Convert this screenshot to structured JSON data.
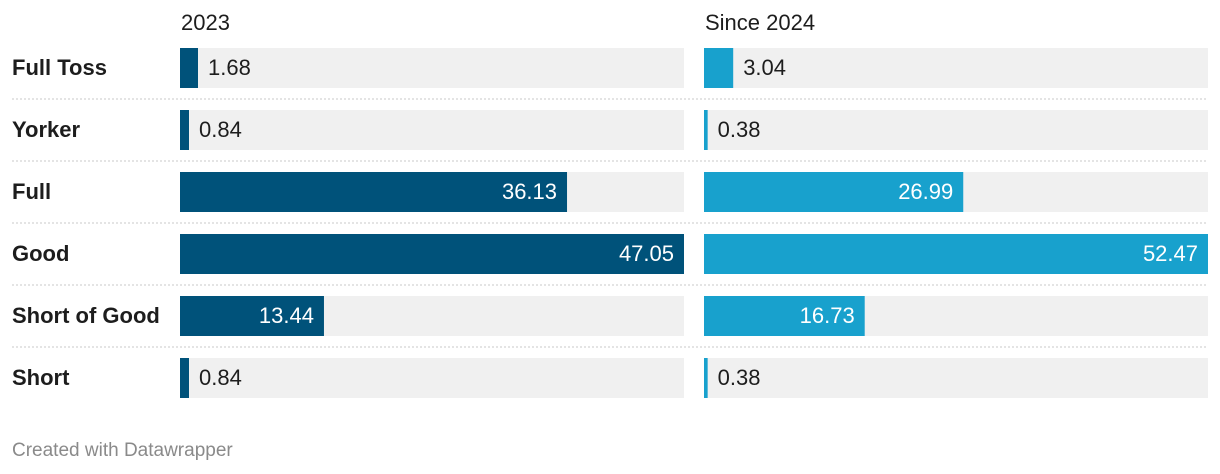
{
  "chart_data": {
    "type": "split-bar",
    "categories": [
      "Full Toss",
      "Yorker",
      "Full",
      "Good",
      "Short of Good",
      "Short"
    ],
    "series": [
      {
        "name": "2023",
        "color": "#00527a",
        "values": [
          1.68,
          0.84,
          36.13,
          47.05,
          13.44,
          0.84
        ],
        "xlim": [
          0,
          47.05
        ]
      },
      {
        "name": "Since 2024",
        "color": "#18a1cd",
        "values": [
          3.04,
          0.38,
          26.99,
          52.47,
          16.73,
          0.38
        ],
        "xlim": [
          0,
          52.47
        ]
      }
    ]
  },
  "footer": "Created with Datawrapper"
}
